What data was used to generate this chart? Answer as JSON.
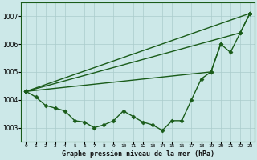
{
  "bg_color": "#cce8e8",
  "grid_color": "#aacccc",
  "line_color": "#1a5c1a",
  "title": "Graphe pression niveau de la mer (hPa)",
  "xlim": [
    -0.5,
    23.5
  ],
  "ylim": [
    1002.5,
    1007.5
  ],
  "yticks": [
    1003,
    1004,
    1005,
    1006,
    1007
  ],
  "xticks": [
    0,
    1,
    2,
    3,
    4,
    5,
    6,
    7,
    8,
    9,
    10,
    11,
    12,
    13,
    14,
    15,
    16,
    17,
    18,
    19,
    20,
    21,
    22,
    23
  ],
  "series1": [
    1004.3,
    1004.1,
    1003.8,
    1003.7,
    1003.6,
    1003.25,
    1003.2,
    1003.0,
    1003.1,
    1003.25,
    1003.6,
    1003.4,
    1003.2,
    1003.1,
    1002.9,
    1003.25,
    1003.25,
    1004.0,
    1004.75,
    1005.0,
    1006.0,
    1005.7,
    1006.4,
    1007.1
  ],
  "line2_x": [
    0,
    23
  ],
  "line2_y": [
    1004.3,
    1007.1
  ],
  "line3_x": [
    0,
    22,
    23
  ],
  "line3_y": [
    1004.3,
    1006.4,
    1007.1
  ],
  "line4_x": [
    0,
    19,
    20
  ],
  "line4_y": [
    1004.3,
    1005.0,
    1006.0
  ],
  "marker": "D",
  "markersize": 2.5,
  "linewidth": 1.0
}
